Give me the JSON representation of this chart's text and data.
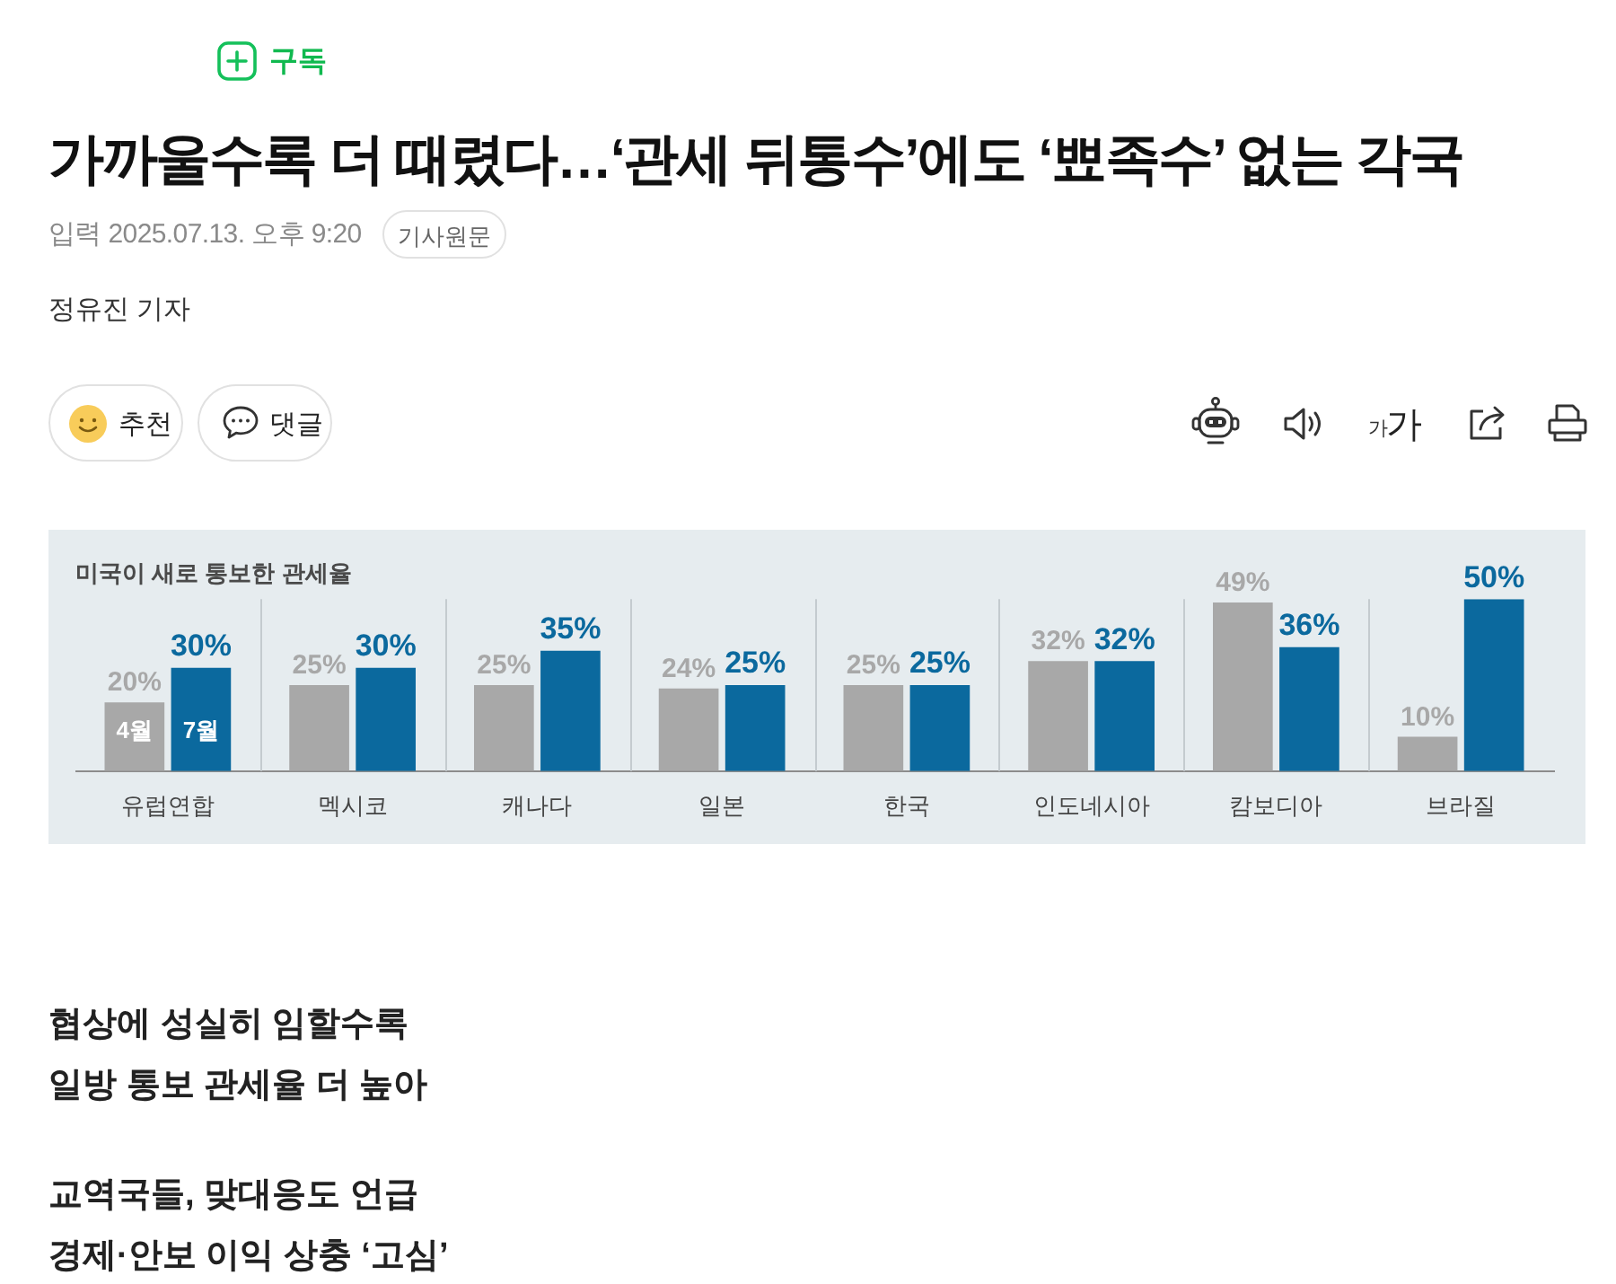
{
  "chart_data": {
    "type": "bar",
    "title": "가까울수록 더 때렸다…‘관세 뒤통수’에도 ‘뾰족수’ 없는 각국",
    "subtitle": "미국이 새로 통보한 관세율",
    "categories": [
      "유럽연합",
      "멕시코",
      "캐나다",
      "일본",
      "한국",
      "인도네시아",
      "캄보디아",
      "브라질"
    ],
    "series": [
      {
        "name": "4월",
        "color": "#a8a8a8",
        "values": [
          20,
          25,
          25,
          24,
          25,
          32,
          49,
          10
        ],
        "value_labels": [
          "20%",
          "25%",
          "25%",
          "24%",
          "25%",
          "32%",
          "49%",
          "10%"
        ]
      },
      {
        "name": "7월",
        "color": "#0b699e",
        "values": [
          30,
          30,
          35,
          25,
          25,
          32,
          36,
          50
        ],
        "value_labels": [
          "30%",
          "30%",
          "35%",
          "25%",
          "25%",
          "32%",
          "36%",
          "50%"
        ]
      }
    ],
    "grid": "x",
    "annotations": [
      "구독",
      "입력 2025.07.13. 오후 9:20",
      "기사원문",
      "정유진 기자",
      "추천",
      "댓글",
      "가",
      "가",
      "협상에 성실히 임할수록",
      "일방 통보 관세율 더 높아",
      "교역국들, 맞대응도 언급",
      "경제·안보 이익 상충 ‘고심’"
    ]
  }
}
